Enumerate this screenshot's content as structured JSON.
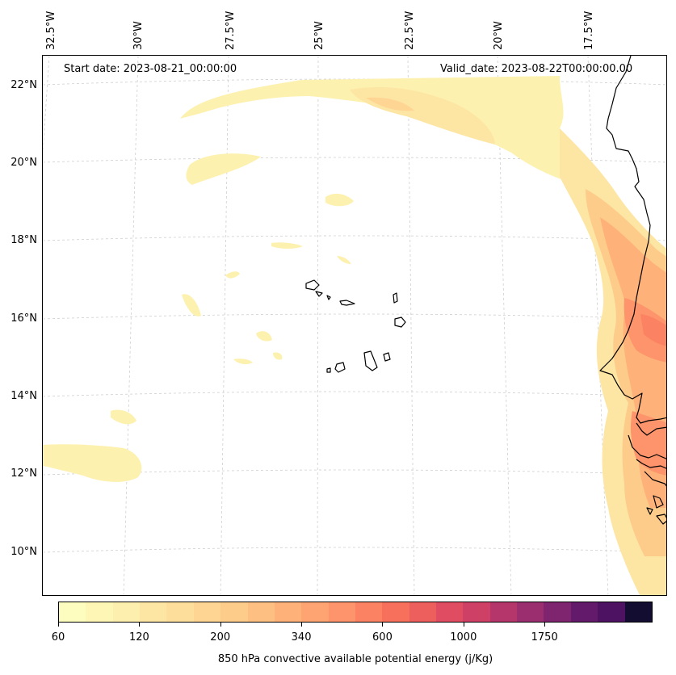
{
  "header": {
    "start_date": "Start date: 2023-08-21_00:00:00",
    "valid_date": "Valid_date: 2023-08-22T00:00:00.00"
  },
  "map": {
    "extent": {
      "lon": [
        -32.5,
        -15.0
      ],
      "lat": [
        8.8,
        22.8
      ]
    },
    "longitude_labels": [
      "32.5°W",
      "30°W",
      "27.5°W",
      "25°W",
      "22.5°W",
      "20°W",
      "17.5°W"
    ],
    "latitude_labels": [
      "22°N",
      "20°N",
      "18°N",
      "16°N",
      "14°N",
      "12°N",
      "10°N"
    ],
    "gridlines": "dashed light gray",
    "coastline_color": "#000000",
    "features": [
      "Cape Verde islands",
      "West African coastline (Mauritania, Senegal, Gambia, Guinea-Bissau)"
    ]
  },
  "colorbar": {
    "title": "850 hPa convective available potential energy (j/Kg)",
    "tick_labels": [
      "60",
      "120",
      "200",
      "340",
      "600",
      "1000",
      "1750"
    ],
    "colors": [
      "#fcfdbf",
      "#fdf6b5",
      "#fdefad",
      "#fde6a4",
      "#fdde9b",
      "#fed593",
      "#fecc8a",
      "#febf82",
      "#feb27a",
      "#fea372",
      "#fd946b",
      "#fb8363",
      "#f6705c",
      "#ed5f5d",
      "#e04d62",
      "#cf4067",
      "#b5366b",
      "#9b2e6e",
      "#7f246e",
      "#641a6b",
      "#4d1262",
      "#120d31"
    ],
    "colormap": "magma_r"
  }
}
